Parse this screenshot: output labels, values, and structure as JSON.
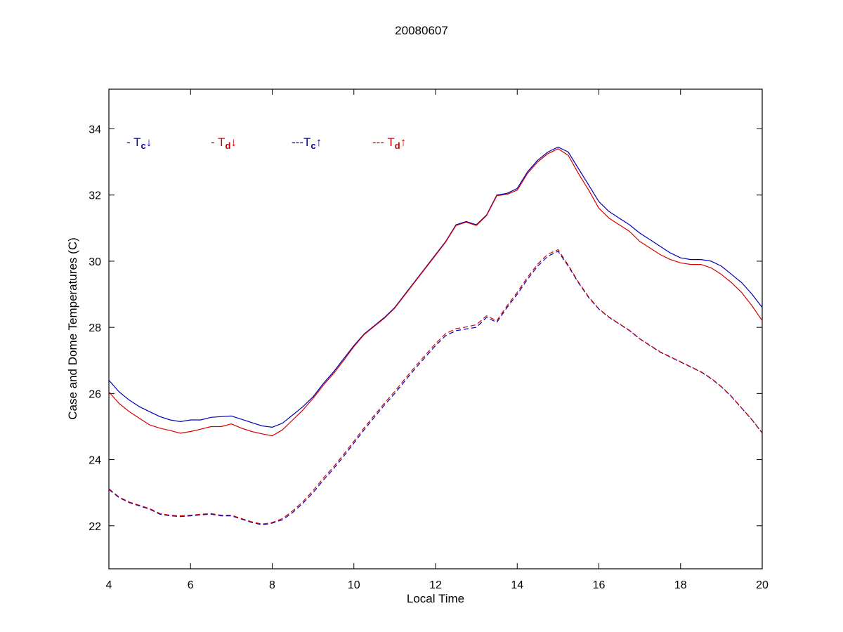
{
  "page": {
    "background": "#ffffff"
  },
  "chart_data": {
    "type": "line",
    "title": "20080607",
    "xlabel": "Local Time",
    "ylabel": "Case and Dome Temperatures (C)",
    "xlim": [
      4,
      20
    ],
    "ylim": [
      20.7,
      35.2
    ],
    "xticks": [
      4,
      6,
      8,
      10,
      12,
      14,
      16,
      18,
      20
    ],
    "yticks": [
      22,
      24,
      26,
      28,
      30,
      32,
      34
    ],
    "grid": false,
    "legend_position": "top-left-inside",
    "x_start": 4,
    "x_step": 0.25,
    "colors": {
      "blue": "#0000B4",
      "red": "#D40000"
    },
    "series": [
      {
        "name": "Tc-down",
        "legend": {
          "prefix": "- ",
          "symbol": "T",
          "subscript": "c",
          "arrow": "↓"
        },
        "color": "blue",
        "style": "solid",
        "values": [
          26.4,
          26.05,
          25.8,
          25.6,
          25.45,
          25.3,
          25.2,
          25.15,
          25.2,
          25.2,
          25.28,
          25.3,
          25.32,
          25.22,
          25.12,
          25.02,
          24.98,
          25.1,
          25.35,
          25.6,
          25.9,
          26.3,
          26.65,
          27.05,
          27.45,
          27.8,
          28.05,
          28.3,
          28.6,
          29.0,
          29.4,
          29.8,
          30.2,
          30.6,
          31.1,
          31.2,
          31.1,
          31.4,
          32.0,
          32.05,
          32.2,
          32.7,
          33.05,
          33.3,
          33.45,
          33.3,
          32.8,
          32.3,
          31.8,
          31.5,
          31.3,
          31.1,
          30.85,
          30.65,
          30.45,
          30.25,
          30.1,
          30.05,
          30.05,
          30.0,
          29.85,
          29.6,
          29.35,
          29.0,
          28.6
        ]
      },
      {
        "name": "Td-down",
        "legend": {
          "prefix": "- ",
          "symbol": "T",
          "subscript": "d",
          "arrow": "↓"
        },
        "color": "red",
        "style": "solid",
        "values": [
          26.05,
          25.7,
          25.45,
          25.25,
          25.05,
          24.95,
          24.88,
          24.8,
          24.85,
          24.92,
          25.0,
          25.0,
          25.08,
          24.95,
          24.85,
          24.78,
          24.72,
          24.9,
          25.2,
          25.5,
          25.85,
          26.25,
          26.6,
          27.0,
          27.42,
          27.78,
          28.03,
          28.28,
          28.58,
          28.98,
          29.38,
          29.78,
          30.18,
          30.58,
          31.08,
          31.18,
          31.08,
          31.38,
          31.98,
          32.02,
          32.15,
          32.65,
          33.0,
          33.25,
          33.4,
          33.2,
          32.65,
          32.15,
          31.6,
          31.3,
          31.1,
          30.9,
          30.6,
          30.4,
          30.2,
          30.05,
          29.95,
          29.9,
          29.9,
          29.8,
          29.6,
          29.35,
          29.05,
          28.65,
          28.2
        ]
      },
      {
        "name": "Tc-up",
        "legend": {
          "prefix": "---",
          "symbol": "T",
          "subscript": "c",
          "arrow": "↑"
        },
        "color": "blue",
        "style": "dashed",
        "values": [
          23.1,
          22.85,
          22.7,
          22.6,
          22.5,
          22.35,
          22.3,
          22.28,
          22.3,
          22.33,
          22.35,
          22.3,
          22.3,
          22.2,
          22.1,
          22.03,
          22.08,
          22.18,
          22.4,
          22.68,
          23.0,
          23.38,
          23.72,
          24.1,
          24.5,
          24.9,
          25.28,
          25.65,
          26.0,
          26.38,
          26.75,
          27.1,
          27.45,
          27.75,
          27.9,
          27.95,
          28.0,
          28.3,
          28.15,
          28.6,
          29.0,
          29.45,
          29.85,
          30.15,
          30.3,
          29.85,
          29.35,
          28.9,
          28.55,
          28.3,
          28.1,
          27.9,
          27.65,
          27.45,
          27.25,
          27.1,
          26.95,
          26.8,
          26.65,
          26.45,
          26.2,
          25.9,
          25.55,
          25.2,
          24.8
        ]
      },
      {
        "name": "Td-up",
        "legend": {
          "prefix": "--- ",
          "symbol": "T",
          "subscript": "d",
          "arrow": "↑"
        },
        "color": "red",
        "style": "dashed",
        "values": [
          23.12,
          22.87,
          22.72,
          22.62,
          22.52,
          22.37,
          22.32,
          22.3,
          22.32,
          22.35,
          22.37,
          22.32,
          22.32,
          22.22,
          22.12,
          22.05,
          22.1,
          22.22,
          22.45,
          22.73,
          23.06,
          23.44,
          23.78,
          24.16,
          24.56,
          24.96,
          25.34,
          25.71,
          26.06,
          26.44,
          26.81,
          27.16,
          27.51,
          27.81,
          27.96,
          28.01,
          28.08,
          28.35,
          28.2,
          28.65,
          29.06,
          29.51,
          29.91,
          30.21,
          30.35,
          29.88,
          29.37,
          28.92,
          28.56,
          28.31,
          28.11,
          27.91,
          27.66,
          27.46,
          27.26,
          27.11,
          26.96,
          26.81,
          26.66,
          26.46,
          26.21,
          25.91,
          25.56,
          25.21,
          24.81
        ]
      }
    ]
  }
}
